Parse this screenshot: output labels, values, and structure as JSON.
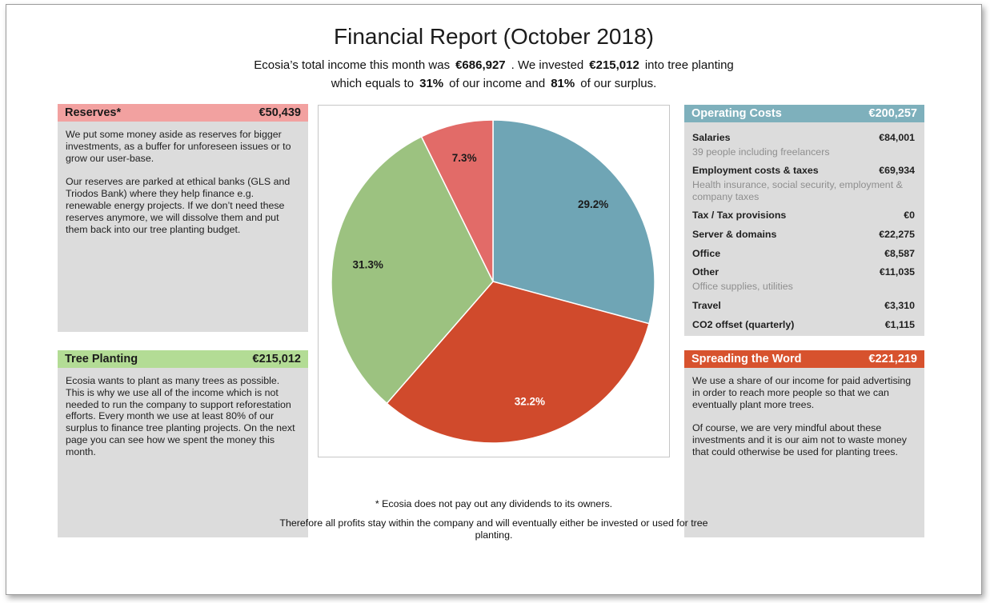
{
  "title": "Financial Report (October 2018)",
  "subtitle": {
    "t1": "Ecosia’s total income this month was",
    "v1": "€686,927",
    "t2": ". We invested",
    "v2": "€215,012",
    "t3": "into tree planting",
    "t4": "which equals to",
    "v3": "31%",
    "t5": "of our income and",
    "v4": "81%",
    "t6": "of our surplus."
  },
  "reserves": {
    "title": "Reserves*",
    "amount": "€50,439",
    "header_color": "#F2A1A0",
    "para1": "We put some money aside as reserves for bigger investments, as a buffer for unforeseen issues or to grow our user-base.",
    "para2": "Our reserves are parked at ethical banks (GLS and Triodos Bank) where they help finance e.g. renewable energy projects. If we don’t need these reserves anymore, we will dissolve them and put them back into our tree planting budget."
  },
  "tree_planting": {
    "title": "Tree Planting",
    "amount": "€215,012",
    "header_color": "#B3DC95",
    "para1": "Ecosia wants to plant as many trees as possible. This is why we use all of the income which is not needed to run the company to support reforestation efforts. Every month we use at least 80% of our surplus to finance tree planting projects. On the next page you can see how we spent the money this month."
  },
  "operating_costs": {
    "title": "Operating Costs",
    "amount": "€200,257",
    "header_color": "#7EB0BC",
    "items": [
      {
        "label": "Salaries",
        "value": "€84,001",
        "note": "39 people including freelancers"
      },
      {
        "label": "Employment costs & taxes",
        "value": "€69,934",
        "note": "Health insurance, social security, employment & company taxes"
      },
      {
        "label": "Tax / Tax provisions",
        "value": "€0"
      },
      {
        "label": "Server & domains",
        "value": "€22,275"
      },
      {
        "label": "Office",
        "value": "€8,587"
      },
      {
        "label": "Other",
        "value": "€11,035",
        "note": "Office supplies, utilities"
      },
      {
        "label": "Travel",
        "value": "€3,310"
      },
      {
        "label": "CO2 offset (quarterly)",
        "value": "€1,115"
      }
    ]
  },
  "spreading": {
    "title": "Spreading the Word",
    "amount": "€221,219",
    "header_color": "#D7522E",
    "para1": "We use a share of our income for paid advertising in order to reach more people so that we can eventually plant more trees.",
    "para2": "Of course, we are very mindful about these investments and it is our aim not to waste money that could otherwise be used for planting trees."
  },
  "footnotes": {
    "line1": "* Ecosia does not pay out any dividends to its owners.",
    "line2": "Therefore all profits stay within the company and will eventually either be invested or used for tree planting."
  },
  "chart_data": {
    "type": "pie",
    "title": "Allocation of monthly income",
    "direction": "clockwise",
    "start_angle_deg": 0,
    "label_format": "percent",
    "slices": [
      {
        "label": "Operating Costs",
        "percent": 29.2,
        "amount": "€200,257",
        "color": "#6FA5B5",
        "text_color": "#1a1a1a"
      },
      {
        "label": "Spreading the Word",
        "percent": 32.2,
        "amount": "€221,219",
        "color": "#D04A2C",
        "text_color": "#ffffff"
      },
      {
        "label": "Tree Planting",
        "percent": 31.3,
        "amount": "€215,012",
        "color": "#9CC280",
        "text_color": "#1a1a1a"
      },
      {
        "label": "Reserves",
        "percent": 7.3,
        "amount": "€50,439",
        "color": "#E26B68",
        "text_color": "#1a1a1a"
      }
    ]
  }
}
